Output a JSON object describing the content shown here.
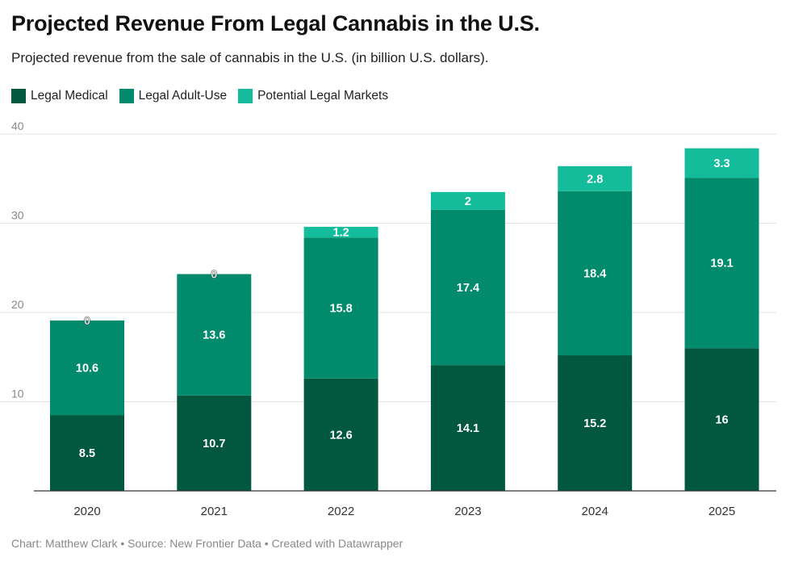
{
  "chart_data": {
    "type": "bar",
    "stacked": true,
    "title": "Projected Revenue From Legal Cannabis in the U.S.",
    "subtitle": "Projected revenue from the sale of cannabis in the U.S. (in billion U.S. dollars).",
    "categories": [
      "2020",
      "2021",
      "2022",
      "2023",
      "2024",
      "2025"
    ],
    "series": [
      {
        "name": "Legal Medical",
        "color": "#02573f",
        "values": [
          8.5,
          10.7,
          12.6,
          14.1,
          15.2,
          16
        ]
      },
      {
        "name": "Legal Adult-Use",
        "color": "#028a6d",
        "values": [
          10.6,
          13.6,
          15.8,
          17.4,
          18.4,
          19.1
        ]
      },
      {
        "name": "Potential Legal Markets",
        "color": "#13bd9b",
        "values": [
          0,
          0,
          1.2,
          2,
          2.8,
          3.3
        ]
      }
    ],
    "ylim": [
      0,
      40
    ],
    "yticks": [
      10,
      20,
      30,
      40
    ],
    "grid": true,
    "legend": "top-left",
    "xlabel": "",
    "ylabel": ""
  },
  "footer": "Chart: Matthew Clark • Source: New Frontier Data • Created with Datawrapper"
}
